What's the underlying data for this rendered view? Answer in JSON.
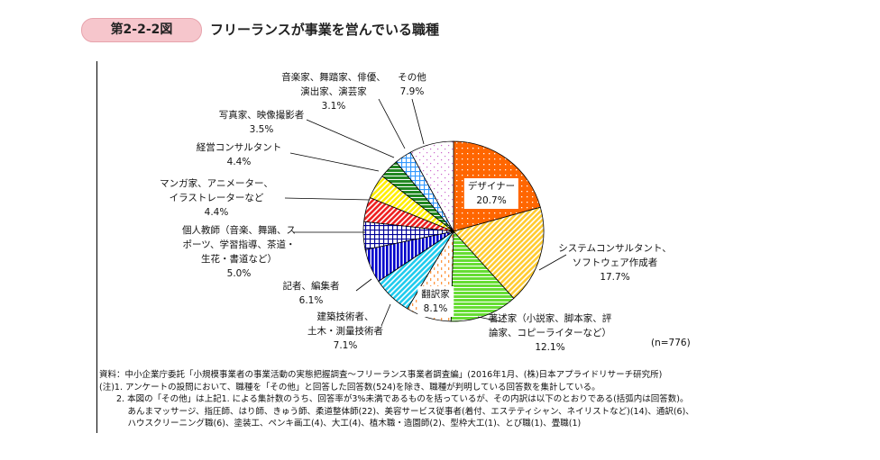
{
  "header": {
    "figure_no": "第2-2-2図",
    "title": "フリーランスが事業を営んでいる職種"
  },
  "chart_data": {
    "type": "pie",
    "title": "フリーランスが事業を営んでいる職種",
    "n_label": "(n=776)",
    "start": "top",
    "direction": "clockwise",
    "slices": [
      {
        "name": "デザイナー",
        "lines": [
          "デザイナー"
        ],
        "value": 20.7,
        "label": "20.7%",
        "color": "#ff6600",
        "pattern": "dots"
      },
      {
        "name": "システムコンサルタント、ソフトウェア作成者",
        "lines": [
          "システムコンサルタント、",
          "ソフトウェア作成者"
        ],
        "value": 17.7,
        "label": "17.7%",
        "color": "#ffcc33",
        "pattern": "diag"
      },
      {
        "name": "著述家(小説家、脚本家、評論家、コピーライターなど)",
        "lines": [
          "著述家（小説家、脚本家、評",
          "論家、コピーライターなど）"
        ],
        "value": 12.1,
        "label": "12.1%",
        "color": "#66dd33",
        "pattern": "hlines"
      },
      {
        "name": "翻訳家",
        "lines": [
          "翻訳家"
        ],
        "value": 8.1,
        "label": "8.1%",
        "color": "#ff9944",
        "pattern": "dashes"
      },
      {
        "name": "建築技術者、土木・測量技術者",
        "lines": [
          "建築技術者、",
          "土木・測量技術者"
        ],
        "value": 7.1,
        "label": "7.1%",
        "color": "#22ccee",
        "pattern": "diag"
      },
      {
        "name": "記者、編集者",
        "lines": [
          "記者、編集者"
        ],
        "value": 6.1,
        "label": "6.1%",
        "color": "#0000cc",
        "pattern": "vlines"
      },
      {
        "name": "個人教師(音楽、舞踊、スポーツ、学習指導、茶道・生花・書道など)",
        "lines": [
          "個人教師（音楽、舞踊、ス",
          "ポーツ、学習指導、茶道・",
          "生花・書道など）"
        ],
        "value": 5.0,
        "label": "5.0%",
        "color": "#000099",
        "pattern": "grid"
      },
      {
        "name": "マンガ家、アニメーター、イラストレーターなど",
        "lines": [
          "マンガ家、アニメーター、",
          "イラストレーターなど"
        ],
        "value": 4.4,
        "label": "4.4%",
        "color": "#ee2222",
        "pattern": "diag"
      },
      {
        "name": "経営コンサルタント",
        "lines": [
          "経営コンサルタント"
        ],
        "value": 4.4,
        "label": "4.4%",
        "color": "#ffee00",
        "pattern": "diag"
      },
      {
        "name": "写真家、映像撮影者",
        "lines": [
          "写真家、映像撮影者"
        ],
        "value": 3.5,
        "label": "3.5%",
        "color": "#228822",
        "pattern": "hlines"
      },
      {
        "name": "音楽家、舞踏家、俳優、演出家、演芸家",
        "lines": [
          "音楽家、舞踏家、俳優、",
          "演出家、演芸家"
        ],
        "value": 3.1,
        "label": "3.1%",
        "color": "#3399ff",
        "pattern": "grid"
      },
      {
        "name": "その他",
        "lines": [
          "その他"
        ],
        "value": 7.9,
        "label": "7.9%",
        "color": "#cc66cc",
        "pattern": "sparse"
      }
    ]
  },
  "notes": [
    "資料：中小企業庁委託「小規模事業者の事業活動の実態把握調査～フリーランス事業者調査編」(2016年1月、(株)日本アプライドリサーチ研究所)",
    "(注)1.  アンケートの設問において、職種を「その他」と回答した回答数(524)を除き、職種が判明している回答数を集計している。",
    "　　2.  本図の「その他」は上記1. による集計数のうち、回答率が3%未満であるものを括っているが、その内訳は以下のとおりである(括弧内は回答数)。",
    "　　　 あんまマッサージ、指圧師、はり師、きゅう師、柔道整体師(22)、美容サービス従事者(着付、エステティシャン、ネイリストなど)(14)、通訳(6)、",
    "　　　 ハウスクリーニング職(6)、塗装工、ペンキ画工(4)、大工(4)、植木職・造園師(2)、型枠大工(1)、とび職(1)、畳職(1)"
  ]
}
